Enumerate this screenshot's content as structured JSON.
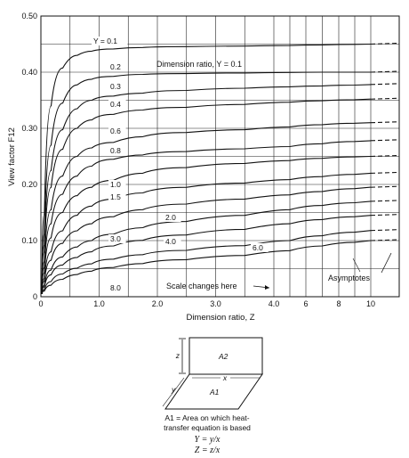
{
  "chart_data": {
    "type": "line",
    "title": "",
    "ylabel": "View factor F12",
    "xlabel": "Dimension ratio, Z",
    "ylim": [
      0,
      0.5
    ],
    "yticks": [
      "0",
      "0.10",
      "0.20",
      "0.30",
      "0.40",
      "0.50"
    ],
    "xticks": [
      "0",
      "1.0",
      "2.0",
      "3.0",
      "4.0",
      "6",
      "8",
      "10"
    ],
    "x_scale_note": "linear from 0 to 4, compressed from 4 to 10",
    "grid": true,
    "series": [
      {
        "name": "0.1",
        "x": [
          0.1,
          0.25,
          0.5,
          0.75,
          1,
          1.5,
          2,
          3,
          4,
          6,
          8,
          10
        ],
        "values": [
          0.29,
          0.39,
          0.425,
          0.435,
          0.44,
          0.443,
          0.445,
          0.446,
          0.447,
          0.448,
          0.449,
          0.45
        ]
      },
      {
        "name": "0.2",
        "x": [
          0.1,
          0.25,
          0.5,
          0.75,
          1,
          1.5,
          2,
          3,
          4,
          6,
          8,
          10
        ],
        "values": [
          0.22,
          0.32,
          0.37,
          0.385,
          0.39,
          0.395,
          0.397,
          0.398,
          0.399,
          0.4,
          0.4,
          0.4
        ]
      },
      {
        "name": "0.3",
        "x": [
          0.1,
          0.25,
          0.5,
          0.75,
          1,
          1.5,
          2,
          3,
          4,
          6,
          8,
          10
        ],
        "values": [
          0.18,
          0.27,
          0.325,
          0.345,
          0.355,
          0.36,
          0.365,
          0.37,
          0.373,
          0.375,
          0.376,
          0.378
        ]
      },
      {
        "name": "0.4",
        "x": [
          0.1,
          0.25,
          0.5,
          0.75,
          1,
          1.5,
          2,
          3,
          4,
          6,
          8,
          10
        ],
        "values": [
          0.155,
          0.235,
          0.29,
          0.31,
          0.32,
          0.33,
          0.335,
          0.34,
          0.345,
          0.348,
          0.35,
          0.352
        ]
      },
      {
        "name": "0.6",
        "x": [
          0.1,
          0.25,
          0.5,
          0.75,
          1,
          1.5,
          2,
          3,
          4,
          6,
          8,
          10
        ],
        "values": [
          0.12,
          0.19,
          0.24,
          0.26,
          0.27,
          0.28,
          0.29,
          0.295,
          0.3,
          0.305,
          0.308,
          0.31
        ]
      },
      {
        "name": "0.8",
        "x": [
          0.1,
          0.25,
          0.5,
          0.75,
          1,
          1.5,
          2,
          3,
          4,
          6,
          8,
          10
        ],
        "values": [
          0.1,
          0.16,
          0.205,
          0.225,
          0.24,
          0.25,
          0.255,
          0.262,
          0.265,
          0.27,
          0.275,
          0.278
        ]
      },
      {
        "name": "1.0",
        "x": [
          0.1,
          0.25,
          0.5,
          0.75,
          1,
          1.5,
          2,
          3,
          4,
          6,
          8,
          10
        ],
        "values": [
          0.08,
          0.13,
          0.17,
          0.19,
          0.2,
          0.215,
          0.225,
          0.235,
          0.24,
          0.245,
          0.248,
          0.25
        ]
      },
      {
        "name": "1.5",
        "x": [
          0.1,
          0.25,
          0.5,
          0.75,
          1,
          1.5,
          2,
          3,
          4,
          6,
          8,
          10
        ],
        "values": [
          0.06,
          0.1,
          0.135,
          0.155,
          0.168,
          0.18,
          0.19,
          0.2,
          0.205,
          0.212,
          0.216,
          0.22
        ]
      },
      {
        "name": "2.0",
        "x": [
          0.1,
          0.25,
          0.5,
          0.75,
          1,
          1.5,
          2,
          3,
          4,
          6,
          8,
          10
        ],
        "values": [
          0.05,
          0.08,
          0.11,
          0.125,
          0.135,
          0.15,
          0.16,
          0.17,
          0.178,
          0.185,
          0.19,
          0.195
        ]
      },
      {
        "name": "3.0",
        "x": [
          0.1,
          0.25,
          0.5,
          0.75,
          1,
          1.5,
          2,
          3,
          4,
          6,
          8,
          10
        ],
        "values": [
          0.035,
          0.06,
          0.082,
          0.095,
          0.105,
          0.118,
          0.128,
          0.14,
          0.15,
          0.16,
          0.165,
          0.17
        ]
      },
      {
        "name": "4.0",
        "x": [
          0.1,
          0.25,
          0.5,
          0.75,
          1,
          1.5,
          2,
          3,
          4,
          6,
          8,
          10
        ],
        "values": [
          0.03,
          0.048,
          0.065,
          0.075,
          0.085,
          0.096,
          0.105,
          0.115,
          0.125,
          0.135,
          0.14,
          0.145
        ]
      },
      {
        "name": "6.0",
        "x": [
          0.1,
          0.25,
          0.5,
          0.75,
          1,
          1.5,
          2,
          3,
          4,
          6,
          8,
          10
        ],
        "values": [
          0.02,
          0.034,
          0.047,
          0.055,
          0.062,
          0.072,
          0.078,
          0.087,
          0.095,
          0.105,
          0.112,
          0.118
        ]
      },
      {
        "name": "8.0",
        "x": [
          0.1,
          0.25,
          0.5,
          0.75,
          1,
          1.5,
          2,
          3,
          4,
          6,
          8,
          10
        ],
        "values": [
          0.015,
          0.026,
          0.036,
          0.043,
          0.048,
          0.056,
          0.062,
          0.07,
          0.077,
          0.087,
          0.094,
          0.1
        ]
      }
    ],
    "curve_labels": [
      "Y = 0.1",
      "0.2",
      "0.3",
      "0.4",
      "0.6",
      "0.8",
      "1.0",
      "1.5",
      "2.0",
      "3.0",
      "4.0",
      "6.0",
      "8.0"
    ],
    "annotations": {
      "dimension_ratio": "Dimension ratio, Y = 0.1",
      "scale_changes": "Scale changes here",
      "asymptotes": "Asymptotes"
    }
  },
  "diagram": {
    "a2": "A2",
    "a1": "A1",
    "z": "z",
    "x": "x",
    "y": "y",
    "caption_line1": "A1 = Area on which heat-",
    "caption_line2": "transfer equation is based",
    "eq_y": "Y = y/x",
    "eq_z": "Z = z/x"
  }
}
